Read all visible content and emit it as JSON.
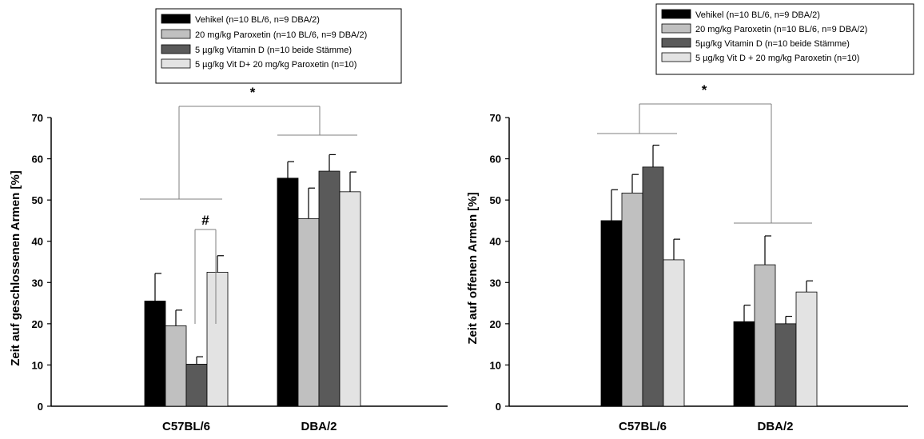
{
  "chart_data": [
    {
      "type": "bar",
      "ylabel": "Zeit auf geschlossenen Armen [%]",
      "xlabel": "",
      "ylim": [
        0,
        70
      ],
      "yticks": [
        0,
        10,
        20,
        30,
        40,
        50,
        60,
        70
      ],
      "categories": [
        "C57BL/6",
        "DBA/2"
      ],
      "series": [
        {
          "name": "Vehikel (n=10 BL/6, n=9 DBA/2)",
          "color": "#000000",
          "values": [
            25.5,
            55.3
          ],
          "errors": [
            6.7,
            4.0
          ]
        },
        {
          "name": "20 mg/kg Paroxetin (n=10 BL/6, n=9 DBA/2)",
          "color": "#c0c0c0",
          "values": [
            19.5,
            45.5
          ],
          "errors": [
            3.8,
            7.4
          ]
        },
        {
          "name": "5 µg/kg Vitamin D (n=10 beide Stämme)",
          "color": "#5a5a5a",
          "values": [
            10.2,
            57.0
          ],
          "errors": [
            1.8,
            4.0
          ]
        },
        {
          "name": "5 µg/kg Vit D+ 20 mg/kg Paroxetin (n=10)",
          "color": "#e3e3e3",
          "values": [
            32.5,
            52.0
          ],
          "errors": [
            4.0,
            4.8
          ]
        }
      ],
      "annotations": [
        "*",
        "#"
      ],
      "legend": "top"
    },
    {
      "type": "bar",
      "ylabel": "Zeit auf offenen Armen [%]",
      "xlabel": "",
      "ylim": [
        0,
        70
      ],
      "yticks": [
        0,
        10,
        20,
        30,
        40,
        50,
        60,
        70
      ],
      "categories": [
        "C57BL/6",
        "DBA/2"
      ],
      "series": [
        {
          "name": "Vehikel (n=10 BL/6, n=9 DBA/2)",
          "color": "#000000",
          "values": [
            45.0,
            20.5
          ],
          "errors": [
            7.5,
            4.0
          ]
        },
        {
          "name": "20 mg/kg Paroxetin (n=10 BL/6, n=9 DBA/2)",
          "color": "#c0c0c0",
          "values": [
            51.7,
            34.3
          ],
          "errors": [
            4.5,
            7.0
          ]
        },
        {
          "name": "5µg/kg  Vitamin D (n=10 beide Stämme)",
          "color": "#5a5a5a",
          "values": [
            58.0,
            20.0
          ],
          "errors": [
            5.3,
            1.8
          ]
        },
        {
          "name": "5 µg/kg Vit D + 20 mg/kg Paroxetin (n=10)",
          "color": "#e3e3e3",
          "values": [
            35.5,
            27.7
          ],
          "errors": [
            5.0,
            2.7
          ]
        }
      ],
      "annotations": [
        "*"
      ],
      "legend": "top-right"
    }
  ]
}
